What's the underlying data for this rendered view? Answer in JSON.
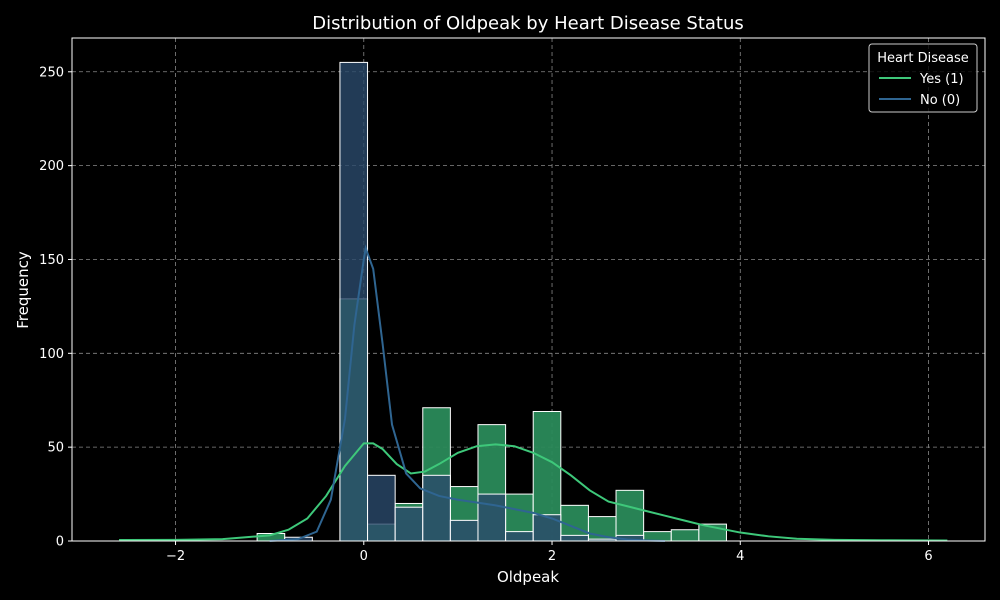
{
  "chart_data": {
    "type": "bar",
    "title": "Distribution of Oldpeak by Heart Disease Status",
    "xlabel": "Oldpeak",
    "ylabel": "Frequency",
    "xlim": [
      -3.1,
      6.6
    ],
    "ylim": [
      0,
      268
    ],
    "xticks": [
      -2,
      0,
      2,
      4,
      6
    ],
    "xtick_labels": [
      "−2",
      "0",
      "2",
      "4",
      "6"
    ],
    "yticks": [
      0,
      50,
      100,
      150,
      200,
      250
    ],
    "grid": true,
    "legend": {
      "title": "Heart Disease",
      "placement": "top-right",
      "entries": [
        {
          "label": "Yes (1)",
          "color": "#3ec87a"
        },
        {
          "label": "No (0)",
          "color": "#2f6591"
        }
      ]
    },
    "bin_edges": [
      -2.6,
      -2.3067,
      -2.0133,
      -1.72,
      -1.4267,
      -1.1333,
      -0.84,
      -0.5467,
      -0.2533,
      0.04,
      0.3333,
      0.6267,
      0.92,
      1.2133,
      1.5067,
      1.8,
      2.0933,
      2.3867,
      2.68,
      2.9733,
      3.2667,
      3.56,
      3.8533,
      4.1467,
      4.44,
      4.7333,
      5.0267,
      5.32,
      5.6133,
      5.9067,
      6.2
    ],
    "series": [
      {
        "name": "Yes (1)",
        "color": "#2a8a5a",
        "kde_color": "#3ec87a",
        "counts": [
          0,
          0,
          0,
          0,
          0,
          4,
          0,
          0,
          129,
          9,
          20,
          71,
          29,
          62,
          25,
          69,
          19,
          13,
          27,
          5,
          6,
          9,
          0,
          0,
          0,
          0,
          0,
          0,
          0,
          0
        ],
        "kde": [
          [
            -2.6,
            0.5
          ],
          [
            -2.0,
            0.6
          ],
          [
            -1.5,
            1
          ],
          [
            -1.0,
            3
          ],
          [
            -0.8,
            6
          ],
          [
            -0.6,
            12
          ],
          [
            -0.4,
            24
          ],
          [
            -0.2,
            40
          ],
          [
            0.0,
            52
          ],
          [
            0.1,
            52
          ],
          [
            0.2,
            49
          ],
          [
            0.35,
            41
          ],
          [
            0.5,
            36
          ],
          [
            0.65,
            37
          ],
          [
            0.8,
            41
          ],
          [
            1.0,
            47
          ],
          [
            1.2,
            50.5
          ],
          [
            1.4,
            51.5
          ],
          [
            1.6,
            50.5
          ],
          [
            1.8,
            47
          ],
          [
            2.0,
            42
          ],
          [
            2.2,
            35
          ],
          [
            2.4,
            27
          ],
          [
            2.6,
            21
          ],
          [
            2.8,
            18.5
          ],
          [
            3.0,
            16
          ],
          [
            3.2,
            13.5
          ],
          [
            3.4,
            11
          ],
          [
            3.6,
            8.5
          ],
          [
            3.8,
            6.5
          ],
          [
            4.0,
            4.5
          ],
          [
            4.3,
            2.5
          ],
          [
            4.6,
            1.2
          ],
          [
            5.0,
            0.6
          ],
          [
            5.5,
            0.4
          ],
          [
            6.2,
            0.3
          ]
        ]
      },
      {
        "name": "No (0)",
        "color": "#2a4a6c",
        "kde_color": "#2f6591",
        "counts": [
          0,
          0,
          0,
          0,
          0,
          0,
          2,
          0,
          255,
          35,
          18,
          35,
          11,
          25,
          5,
          14,
          3,
          1,
          3,
          0,
          0,
          0,
          0,
          0,
          0,
          0,
          0,
          0,
          0,
          0
        ],
        "kde": [
          [
            -1.0,
            0
          ],
          [
            -0.7,
            1
          ],
          [
            -0.5,
            5
          ],
          [
            -0.35,
            22
          ],
          [
            -0.2,
            65
          ],
          [
            -0.1,
            115
          ],
          [
            0.0,
            150
          ],
          [
            0.02,
            156
          ],
          [
            0.1,
            145
          ],
          [
            0.2,
            105
          ],
          [
            0.3,
            62
          ],
          [
            0.45,
            36
          ],
          [
            0.6,
            28
          ],
          [
            0.8,
            24
          ],
          [
            1.0,
            22
          ],
          [
            1.2,
            20.5
          ],
          [
            1.4,
            19
          ],
          [
            1.6,
            17
          ],
          [
            1.8,
            15
          ],
          [
            2.0,
            12
          ],
          [
            2.2,
            8
          ],
          [
            2.4,
            4
          ],
          [
            2.6,
            2
          ],
          [
            2.8,
            0.8
          ],
          [
            3.0,
            0.3
          ],
          [
            3.2,
            0
          ]
        ]
      }
    ]
  }
}
